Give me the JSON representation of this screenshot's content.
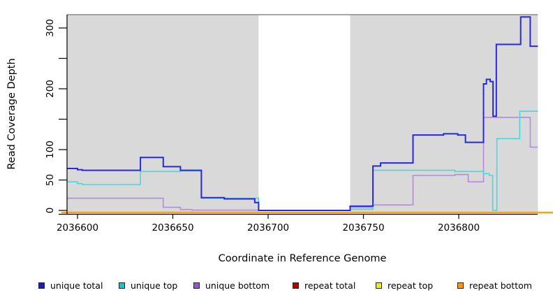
{
  "chart_data": {
    "type": "line",
    "subtype": "step-coverage-plot",
    "title": "",
    "xlabel": "Coordinate in Reference Genome",
    "ylabel": "Read Coverage Depth",
    "xlim": [
      2036594.5,
      2036841.5
    ],
    "ylim": [
      0,
      325
    ],
    "grid": false,
    "legend_position": "bottom",
    "x_ticks": [
      {
        "value": 2036600,
        "label": "2036600"
      },
      {
        "value": 2036650,
        "label": "2036650"
      },
      {
        "value": 2036700,
        "label": "2036700"
      },
      {
        "value": 2036750,
        "label": "2036750"
      },
      {
        "value": 2036800,
        "label": "2036800"
      }
    ],
    "y_ticks": [
      {
        "value": 0,
        "label": "0"
      },
      {
        "value": 50,
        "label": "50"
      },
      {
        "value": 100,
        "label": "100"
      },
      {
        "value": 150,
        "label": ""
      },
      {
        "value": 200,
        "label": "200"
      },
      {
        "value": 250,
        "label": ""
      },
      {
        "value": 300,
        "label": "300"
      }
    ],
    "covered_regions": [
      [
        2036594.5,
        2036695
      ],
      [
        2036743,
        2036841.5
      ]
    ],
    "gap_region": [
      2036695,
      2036743
    ],
    "region_fill": "#d9d9d9",
    "gap_fill": "#ffffff",
    "region_top_line_color": "#999999",
    "series": [
      {
        "name": "repeat total",
        "color": "#c00000",
        "width": 2,
        "overflow": true,
        "points": [
          [
            2036594.5,
            0
          ],
          [
            2036841.5,
            0
          ]
        ]
      },
      {
        "name": "repeat top",
        "color": "#f0f000",
        "width": 2,
        "overflow": true,
        "points": [
          [
            2036594.5,
            0
          ],
          [
            2036841.5,
            0
          ]
        ]
      },
      {
        "name": "repeat bottom",
        "color": "#ffa500",
        "width": 2.5,
        "overflow": true,
        "points": [
          [
            2036594.5,
            0
          ],
          [
            2036841.5,
            0
          ]
        ]
      },
      {
        "name": "unique bottom",
        "color": "#b48ade",
        "width": 1.6,
        "points": [
          [
            2036594.5,
            20
          ],
          [
            2036645,
            5
          ],
          [
            2036654,
            1.5
          ],
          [
            2036660,
            0.5
          ],
          [
            2036695,
            0
          ],
          [
            2036743,
            5
          ],
          [
            2036755,
            9
          ],
          [
            2036776,
            57.5
          ],
          [
            2036798,
            59
          ],
          [
            2036805,
            47
          ],
          [
            2036813,
            153
          ],
          [
            2036837.5,
            104
          ],
          [
            2036841.5,
            104
          ]
        ]
      },
      {
        "name": "unique top",
        "color": "#45d9dc",
        "width": 1.6,
        "points": [
          [
            2036594.5,
            47
          ],
          [
            2036600,
            44
          ],
          [
            2036602.5,
            42.5
          ],
          [
            2036633,
            64
          ],
          [
            2036654,
            65
          ],
          [
            2036665,
            20
          ],
          [
            2036695,
            0
          ],
          [
            2036743,
            2
          ],
          [
            2036755,
            66
          ],
          [
            2036798,
            64
          ],
          [
            2036813,
            60.5
          ],
          [
            2036816,
            57.5
          ],
          [
            2036817.8,
            0
          ],
          [
            2036820,
            118
          ],
          [
            2036832,
            163
          ],
          [
            2036841.5,
            163
          ]
        ]
      },
      {
        "name": "unique total",
        "color": "#2828dc",
        "width": 2,
        "points": [
          [
            2036594.5,
            69
          ],
          [
            2036600,
            67
          ],
          [
            2036602.5,
            66
          ],
          [
            2036633,
            87
          ],
          [
            2036645,
            72
          ],
          [
            2036654,
            66
          ],
          [
            2036665,
            21
          ],
          [
            2036677,
            19
          ],
          [
            2036693,
            13
          ],
          [
            2036695,
            0
          ],
          [
            2036743,
            7
          ],
          [
            2036755,
            73
          ],
          [
            2036759,
            78
          ],
          [
            2036776,
            124
          ],
          [
            2036792,
            126
          ],
          [
            2036799.5,
            124
          ],
          [
            2036803.5,
            112
          ],
          [
            2036813,
            208
          ],
          [
            2036814.5,
            215.5
          ],
          [
            2036816.5,
            212
          ],
          [
            2036818,
            155
          ],
          [
            2036819.7,
            273
          ],
          [
            2036832.5,
            318
          ],
          [
            2036837.5,
            270
          ],
          [
            2036841.5,
            270
          ]
        ]
      }
    ]
  },
  "legend": {
    "items": [
      {
        "label": "unique total",
        "color": "#1c1cb8"
      },
      {
        "label": "unique top",
        "color": "#00ced1"
      },
      {
        "label": "unique bottom",
        "color": "#9257c8"
      },
      {
        "label": "repeat total",
        "color": "#b30000"
      },
      {
        "label": "repeat top",
        "color": "#f0f000"
      },
      {
        "label": "repeat bottom",
        "color": "#ff9900"
      }
    ]
  },
  "colors": {
    "plot_background": "#d9d9d9",
    "gap_background": "#ffffff",
    "axis": "#000000",
    "region_top_line": "#999999"
  }
}
